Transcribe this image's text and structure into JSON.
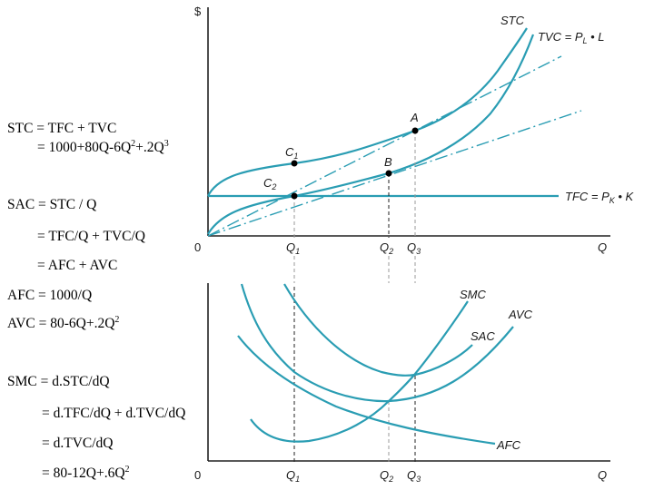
{
  "top_chart": {
    "y_axis_label": "$",
    "x_axis_label": "Q",
    "origin_label": "0",
    "curve_labels": {
      "stc": "STC",
      "tvc": "TVC = P",
      "tvc_sub": "L",
      "tvc_tail": " • L",
      "tfc": "TFC = P",
      "tfc_sub": "K",
      "tfc_tail": " • K"
    },
    "points": {
      "a": "A",
      "b": "B",
      "c1": "C",
      "c1_sub": "1",
      "c2": "C",
      "c2_sub": "2"
    },
    "ticks": {
      "q1": "Q",
      "q1_sub": "1",
      "q2": "Q",
      "q2_sub": "2",
      "q3": "Q",
      "q3_sub": "3"
    }
  },
  "bottom_chart": {
    "x_axis_label": "Q",
    "origin_label": "0",
    "curve_labels": {
      "smc": "SMC",
      "avc": "AVC",
      "sac": "SAC",
      "afc": "AFC"
    },
    "ticks": {
      "q1": "Q",
      "q1_sub": "1",
      "q2": "Q",
      "q2_sub": "2",
      "q3": "Q",
      "q3_sub": "3"
    }
  },
  "equations": {
    "stc_def": "STC = TFC + TVC",
    "stc_val_pre": "= 1000+80Q-6Q",
    "stc_val_exp1": "2",
    "stc_val_mid": "+.2Q",
    "stc_val_exp2": "3",
    "sac_def": "SAC = STC / Q",
    "sac_split": "= TFC/Q + TVC/Q",
    "sac_sum": "= AFC + AVC",
    "afc_def": "AFC = 1000/Q",
    "avc_def_pre": "AVC = 80-6Q+.2Q",
    "avc_def_exp": "2",
    "smc_def": "SMC = d.STC/dQ",
    "smc_split": "= d.TFC/dQ + d.TVC/dQ",
    "smc_tvc": "= d.TVC/dQ",
    "smc_val_pre": "= 80-12Q+.6Q",
    "smc_val_exp": "2"
  },
  "colors": {
    "curve": "#2a9db3",
    "axis": "#222222"
  }
}
